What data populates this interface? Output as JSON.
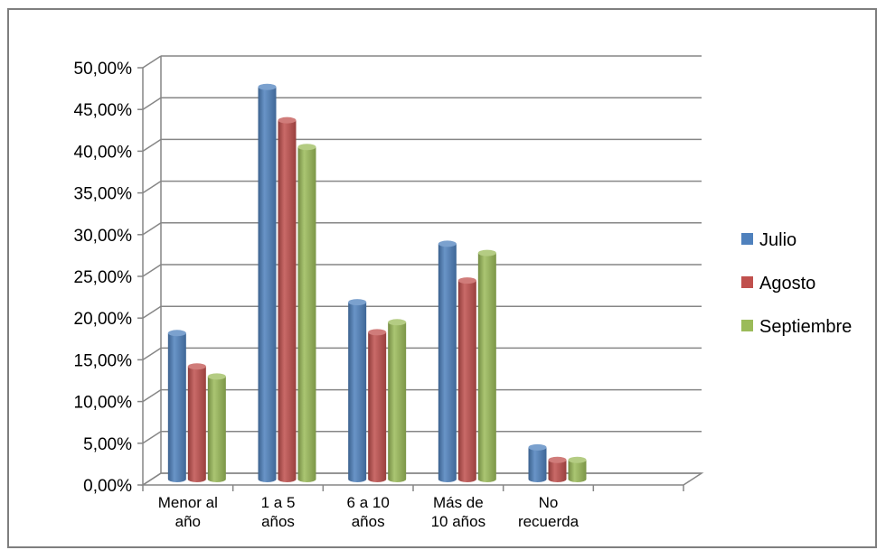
{
  "chart_data": {
    "type": "bar",
    "variant": "3d-clustered-column",
    "title": "",
    "xlabel": "",
    "ylabel": "",
    "categories": [
      [
        "Menor al",
        "año"
      ],
      [
        "1 a 5",
        "años"
      ],
      [
        "6 a 10",
        "años"
      ],
      [
        "Más de",
        "10 años"
      ],
      [
        "No",
        "recuerda"
      ],
      [
        "",
        ""
      ]
    ],
    "series": [
      {
        "name": "Julio",
        "color": "#4f81bd",
        "values": [
          17.5,
          47.0,
          21.2,
          28.2,
          3.8,
          null
        ]
      },
      {
        "name": "Agosto",
        "color": "#c0504d",
        "values": [
          13.5,
          43.0,
          17.6,
          23.8,
          2.3,
          null
        ]
      },
      {
        "name": "Septiembre",
        "color": "#9bbb59",
        "values": [
          12.3,
          39.8,
          18.8,
          27.1,
          2.3,
          null
        ]
      }
    ],
    "ylim": [
      0,
      50
    ],
    "ytick_step": 5,
    "ytick_labels": [
      "0,00%",
      "5,00%",
      "10,00%",
      "15,00%",
      "20,00%",
      "25,00%",
      "30,00%",
      "35,00%",
      "40,00%",
      "45,00%",
      "50,00%"
    ],
    "grid": true,
    "legend_position": "right"
  }
}
